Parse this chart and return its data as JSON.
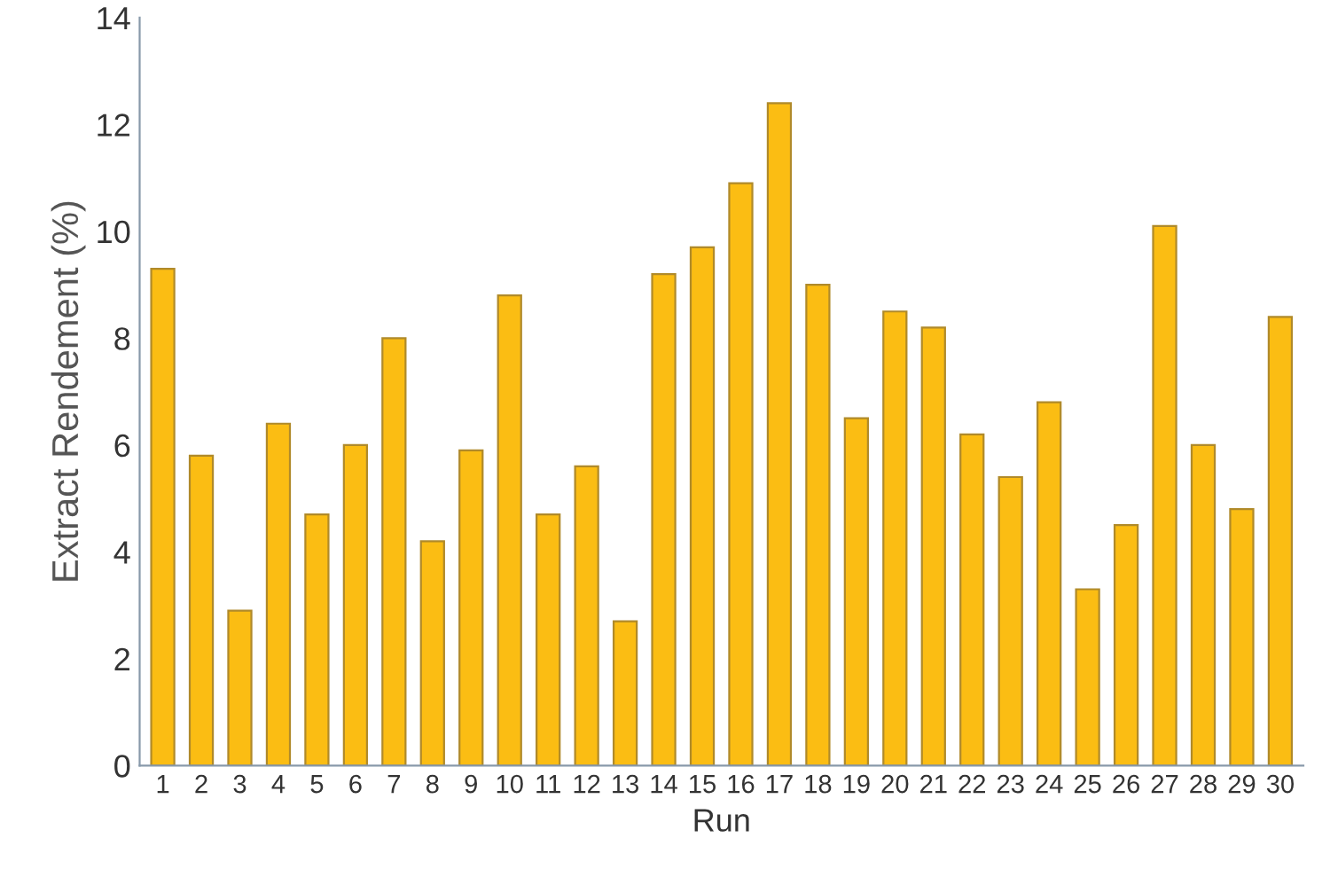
{
  "chart_data": {
    "type": "bar",
    "xlabel": "Run",
    "ylabel": "Extract Rendement (%)",
    "categories": [
      "1",
      "2",
      "3",
      "4",
      "5",
      "6",
      "7",
      "8",
      "9",
      "10",
      "11",
      "12",
      "13",
      "14",
      "15",
      "16",
      "17",
      "18",
      "19",
      "20",
      "21",
      "22",
      "23",
      "24",
      "25",
      "26",
      "27",
      "28",
      "29",
      "30"
    ],
    "values": [
      9.3,
      5.8,
      2.9,
      6.4,
      4.7,
      6.0,
      8.0,
      4.2,
      5.9,
      8.8,
      4.7,
      5.6,
      2.7,
      9.2,
      9.7,
      10.9,
      12.4,
      9.0,
      6.5,
      8.5,
      8.2,
      6.2,
      5.4,
      6.8,
      3.3,
      4.5,
      10.1,
      6.0,
      4.8,
      8.4
    ],
    "color": "#fbbd13",
    "ylim": [
      0,
      14
    ],
    "yticks": [
      0,
      2,
      4,
      6,
      8,
      10,
      12,
      14
    ],
    "grid": false
  }
}
